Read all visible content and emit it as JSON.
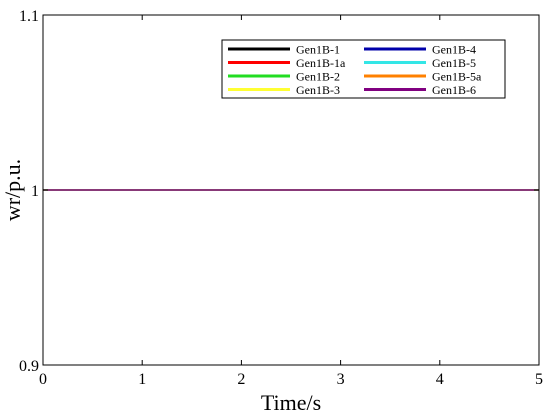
{
  "chart_data": {
    "type": "line",
    "title": "",
    "xlabel": "Time/s",
    "ylabel": "wr/p.u.",
    "xlim": [
      0,
      5
    ],
    "ylim": [
      0.9,
      1.1
    ],
    "xticks": [
      0,
      1,
      2,
      3,
      4,
      5
    ],
    "xtick_labels": [
      "0",
      "1",
      "2",
      "3",
      "4",
      "5"
    ],
    "yticks": [
      0.9,
      1.0,
      1.1
    ],
    "ytick_labels": [
      "0.9",
      "1",
      "1.1"
    ],
    "grid": false,
    "legend_position": "top-right",
    "legend_columns": 2,
    "series": [
      {
        "name": "Gen1B-1",
        "color": "#000000",
        "x": [
          0,
          5
        ],
        "y": [
          1.0,
          1.0
        ]
      },
      {
        "name": "Gen1B-1a",
        "color": "#ff0000",
        "x": [
          0,
          5
        ],
        "y": [
          1.0,
          1.0
        ]
      },
      {
        "name": "Gen1B-2",
        "color": "#22dd22",
        "x": [
          0,
          5
        ],
        "y": [
          1.0,
          1.0
        ]
      },
      {
        "name": "Gen1B-3",
        "color": "#ffff33",
        "x": [
          0,
          5
        ],
        "y": [
          1.0,
          1.0
        ]
      },
      {
        "name": "Gen1B-4",
        "color": "#0000aa",
        "x": [
          0,
          5
        ],
        "y": [
          1.0,
          1.0
        ]
      },
      {
        "name": "Gen1B-5",
        "color": "#33e6e6",
        "x": [
          0,
          5
        ],
        "y": [
          1.0,
          1.0
        ]
      },
      {
        "name": "Gen1B-5a",
        "color": "#ff8000",
        "x": [
          0,
          5
        ],
        "y": [
          1.0,
          1.0
        ]
      },
      {
        "name": "Gen1B-6",
        "color": "#800080",
        "x": [
          0,
          5
        ],
        "y": [
          1.0,
          1.0
        ]
      }
    ]
  }
}
